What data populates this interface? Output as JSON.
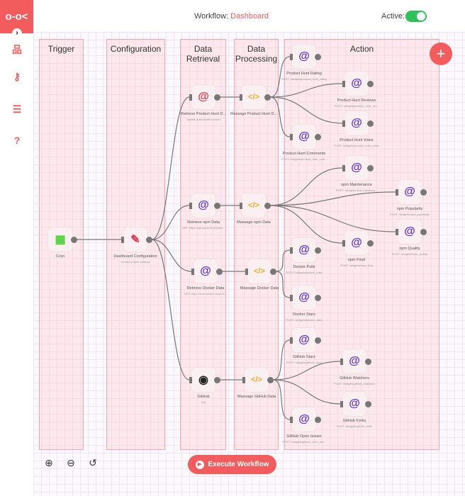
{
  "header": {
    "workflow_label": "Workflow:",
    "workflow_name": "Dashboard",
    "active_label": "Active:",
    "active": true
  },
  "colors": {
    "accent": "#f25c5c",
    "toggle_on": "#2fc25b",
    "http_icon": "#5b2fd6",
    "function_icon": "#f5a623",
    "cron_icon": "#4cd137"
  },
  "sidebar": {
    "items": [
      {
        "icon": "workflow-icon"
      },
      {
        "icon": "key-icon"
      },
      {
        "icon": "list-icon"
      },
      {
        "icon": "help-icon"
      }
    ]
  },
  "groups": [
    "Trigger",
    "Configuration",
    "Data\nRetrieval",
    "Data\nProcessing",
    "Action"
  ],
  "nodes": [
    {
      "name": "Cron",
      "sub": "",
      "icon": "calendar"
    },
    {
      "name": "Dashboard Configuration",
      "sub": "Update project settings",
      "icon": "pencil"
    },
    {
      "name": "Retrieve Product Hunt D...",
      "sub": "Update authorization token",
      "icon": "at-red"
    },
    {
      "name": "Massage Product Hunt D...",
      "sub": "",
      "icon": "code"
    },
    {
      "name": "Product Hunt Rating",
      "sub": "POST: /widgets/product_hunt_rating",
      "icon": "at"
    },
    {
      "name": "Product Hunt Reviews",
      "sub": "POST: /widgets/product_hunt_rev...",
      "icon": "at"
    },
    {
      "name": "Product Hunt Votes",
      "sub": "POST: /widgets/product_hunt_votes",
      "icon": "at"
    },
    {
      "name": "Product Hunt Comments",
      "sub": "POST: /widgets/product_hunt_com...",
      "icon": "at"
    },
    {
      "name": "npm Maintenance",
      "sub": "POST: /widgets/npm_maintena...",
      "icon": "at"
    },
    {
      "name": "Retrieve npm Data",
      "sub": "GET: https://api.npms.io/v2/pack...",
      "icon": "at"
    },
    {
      "name": "Massage npm Data",
      "sub": "",
      "icon": "code"
    },
    {
      "name": "npm Popularity",
      "sub": "POST: /widgets/npm_popularity",
      "icon": "at"
    },
    {
      "name": "npm Quality",
      "sub": "POST: /widgets/npm_quality",
      "icon": "at"
    },
    {
      "name": "npm Final",
      "sub": "POST: /widgets/npm_final",
      "icon": "at"
    },
    {
      "name": "Docker Pulls",
      "sub": "POST: /widgets/docker_pulls",
      "icon": "at"
    },
    {
      "name": "Retrieve Docker Data",
      "sub": "GET: https://hub.docker.com/v2/...",
      "icon": "at"
    },
    {
      "name": "Massage Docker Data",
      "sub": "",
      "icon": "code"
    },
    {
      "name": "Docker Stars",
      "sub": "POST: /widgets/docker_stars",
      "icon": "at"
    },
    {
      "name": "GitHub Stars",
      "sub": "POST: /widgets/github_stars",
      "icon": "at"
    },
    {
      "name": "GitHub Watchers",
      "sub": "POST: /widgets/github_watchers",
      "icon": "at"
    },
    {
      "name": "GitHub",
      "sub": "Get",
      "icon": "github"
    },
    {
      "name": "Massage GitHub Data",
      "sub": "",
      "icon": "code"
    },
    {
      "name": "GitHub Forks",
      "sub": "POST: /widgets/github_forks",
      "icon": "at"
    },
    {
      "name": "GitHub Open Issues",
      "sub": "POST: /widgets/github_open_iss...",
      "icon": "at"
    }
  ],
  "controls": {
    "zoom_in": "zoom-in-icon",
    "zoom_out": "zoom-out-icon",
    "reset": "reset-icon",
    "execute_label": "Execute Workflow"
  }
}
